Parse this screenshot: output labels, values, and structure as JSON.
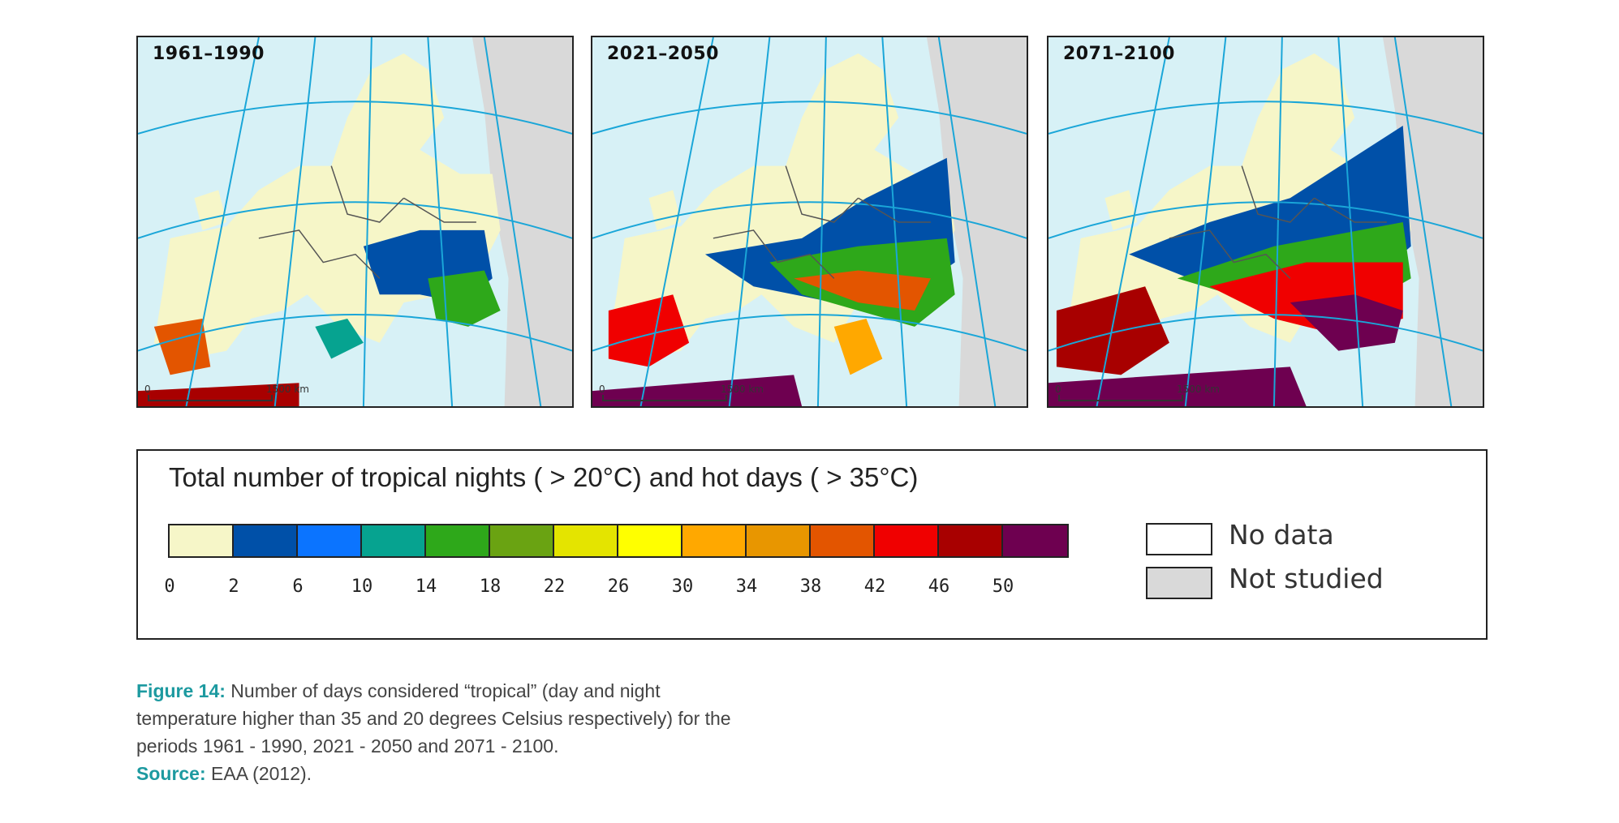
{
  "panels": [
    {
      "period": "1961–1990",
      "scale_start": "0",
      "scale_end": "1500 km"
    },
    {
      "period": "2021–2050",
      "scale_start": "0",
      "scale_end": "1500 km"
    },
    {
      "period": "2071→2100",
      "scale_start": "0",
      "scale_end": "1500 km"
    }
  ],
  "legend": {
    "title": "Total number of tropical nights ( > 20°C) and hot days ( > 35°C)",
    "bins": [
      {
        "color": "#f6f6c8"
      },
      {
        "color": "#0050a8"
      },
      {
        "color": "#0b74ff"
      },
      {
        "color": "#06a390"
      },
      {
        "color": "#2ea81a"
      },
      {
        "color": "#6aa312"
      },
      {
        "color": "#e4e400"
      },
      {
        "color": "#ffff00"
      },
      {
        "color": "#ffa800"
      },
      {
        "color": "#e89600"
      },
      {
        "color": "#e35500"
      },
      {
        "color": "#f00000"
      },
      {
        "color": "#a80000"
      },
      {
        "color": "#6e0050"
      }
    ],
    "ticks": [
      "0",
      "2",
      "6",
      "10",
      "14",
      "18",
      "22",
      "26",
      "30",
      "34",
      "38",
      "42",
      "46",
      "50"
    ],
    "no_data_label": "No data",
    "not_studied_label": "Not studied",
    "no_data_color": "#ffffff",
    "not_studied_color": "#d9d9d9"
  },
  "caption": {
    "figure_label": "Figure 14:",
    "figure_text": " Number of days considered “tropical” (day and night temperature higher than 35 and 20 degrees Celsius respectively) for the periods 1961 - 1990, 2021 - 2050 and 2071 - 2100.",
    "source_label": "Source:",
    "source_text": " EAA (2012)."
  },
  "colors": {
    "accent": "#1d9aa0",
    "sea": "#d7f1f6",
    "land": "#f6f6c8",
    "grid": "#1aa6d8"
  }
}
